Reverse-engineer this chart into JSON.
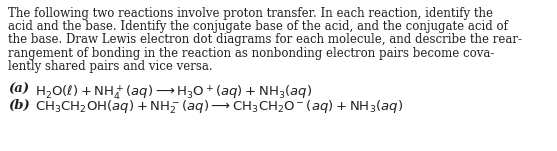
{
  "body_lines": [
    "The following two reactions involve proton transfer. In each reaction, identify the",
    "acid and the base. Identify the conjugate base of the acid, and the conjugate acid of",
    "the base. Draw Lewis electron dot diagrams for each molecule, and describe the rear-",
    "rangement of bonding in the reaction as nonbonding electron pairs become cova-",
    "lently shared pairs and vice versa."
  ],
  "label_a": "(a)",
  "label_b": "(b)",
  "background_color": "#ffffff",
  "text_color": "#231f20",
  "font_size_body": 8.5,
  "font_size_reactions": 9.5,
  "fig_width": 5.57,
  "fig_height": 1.51,
  "dpi": 100
}
